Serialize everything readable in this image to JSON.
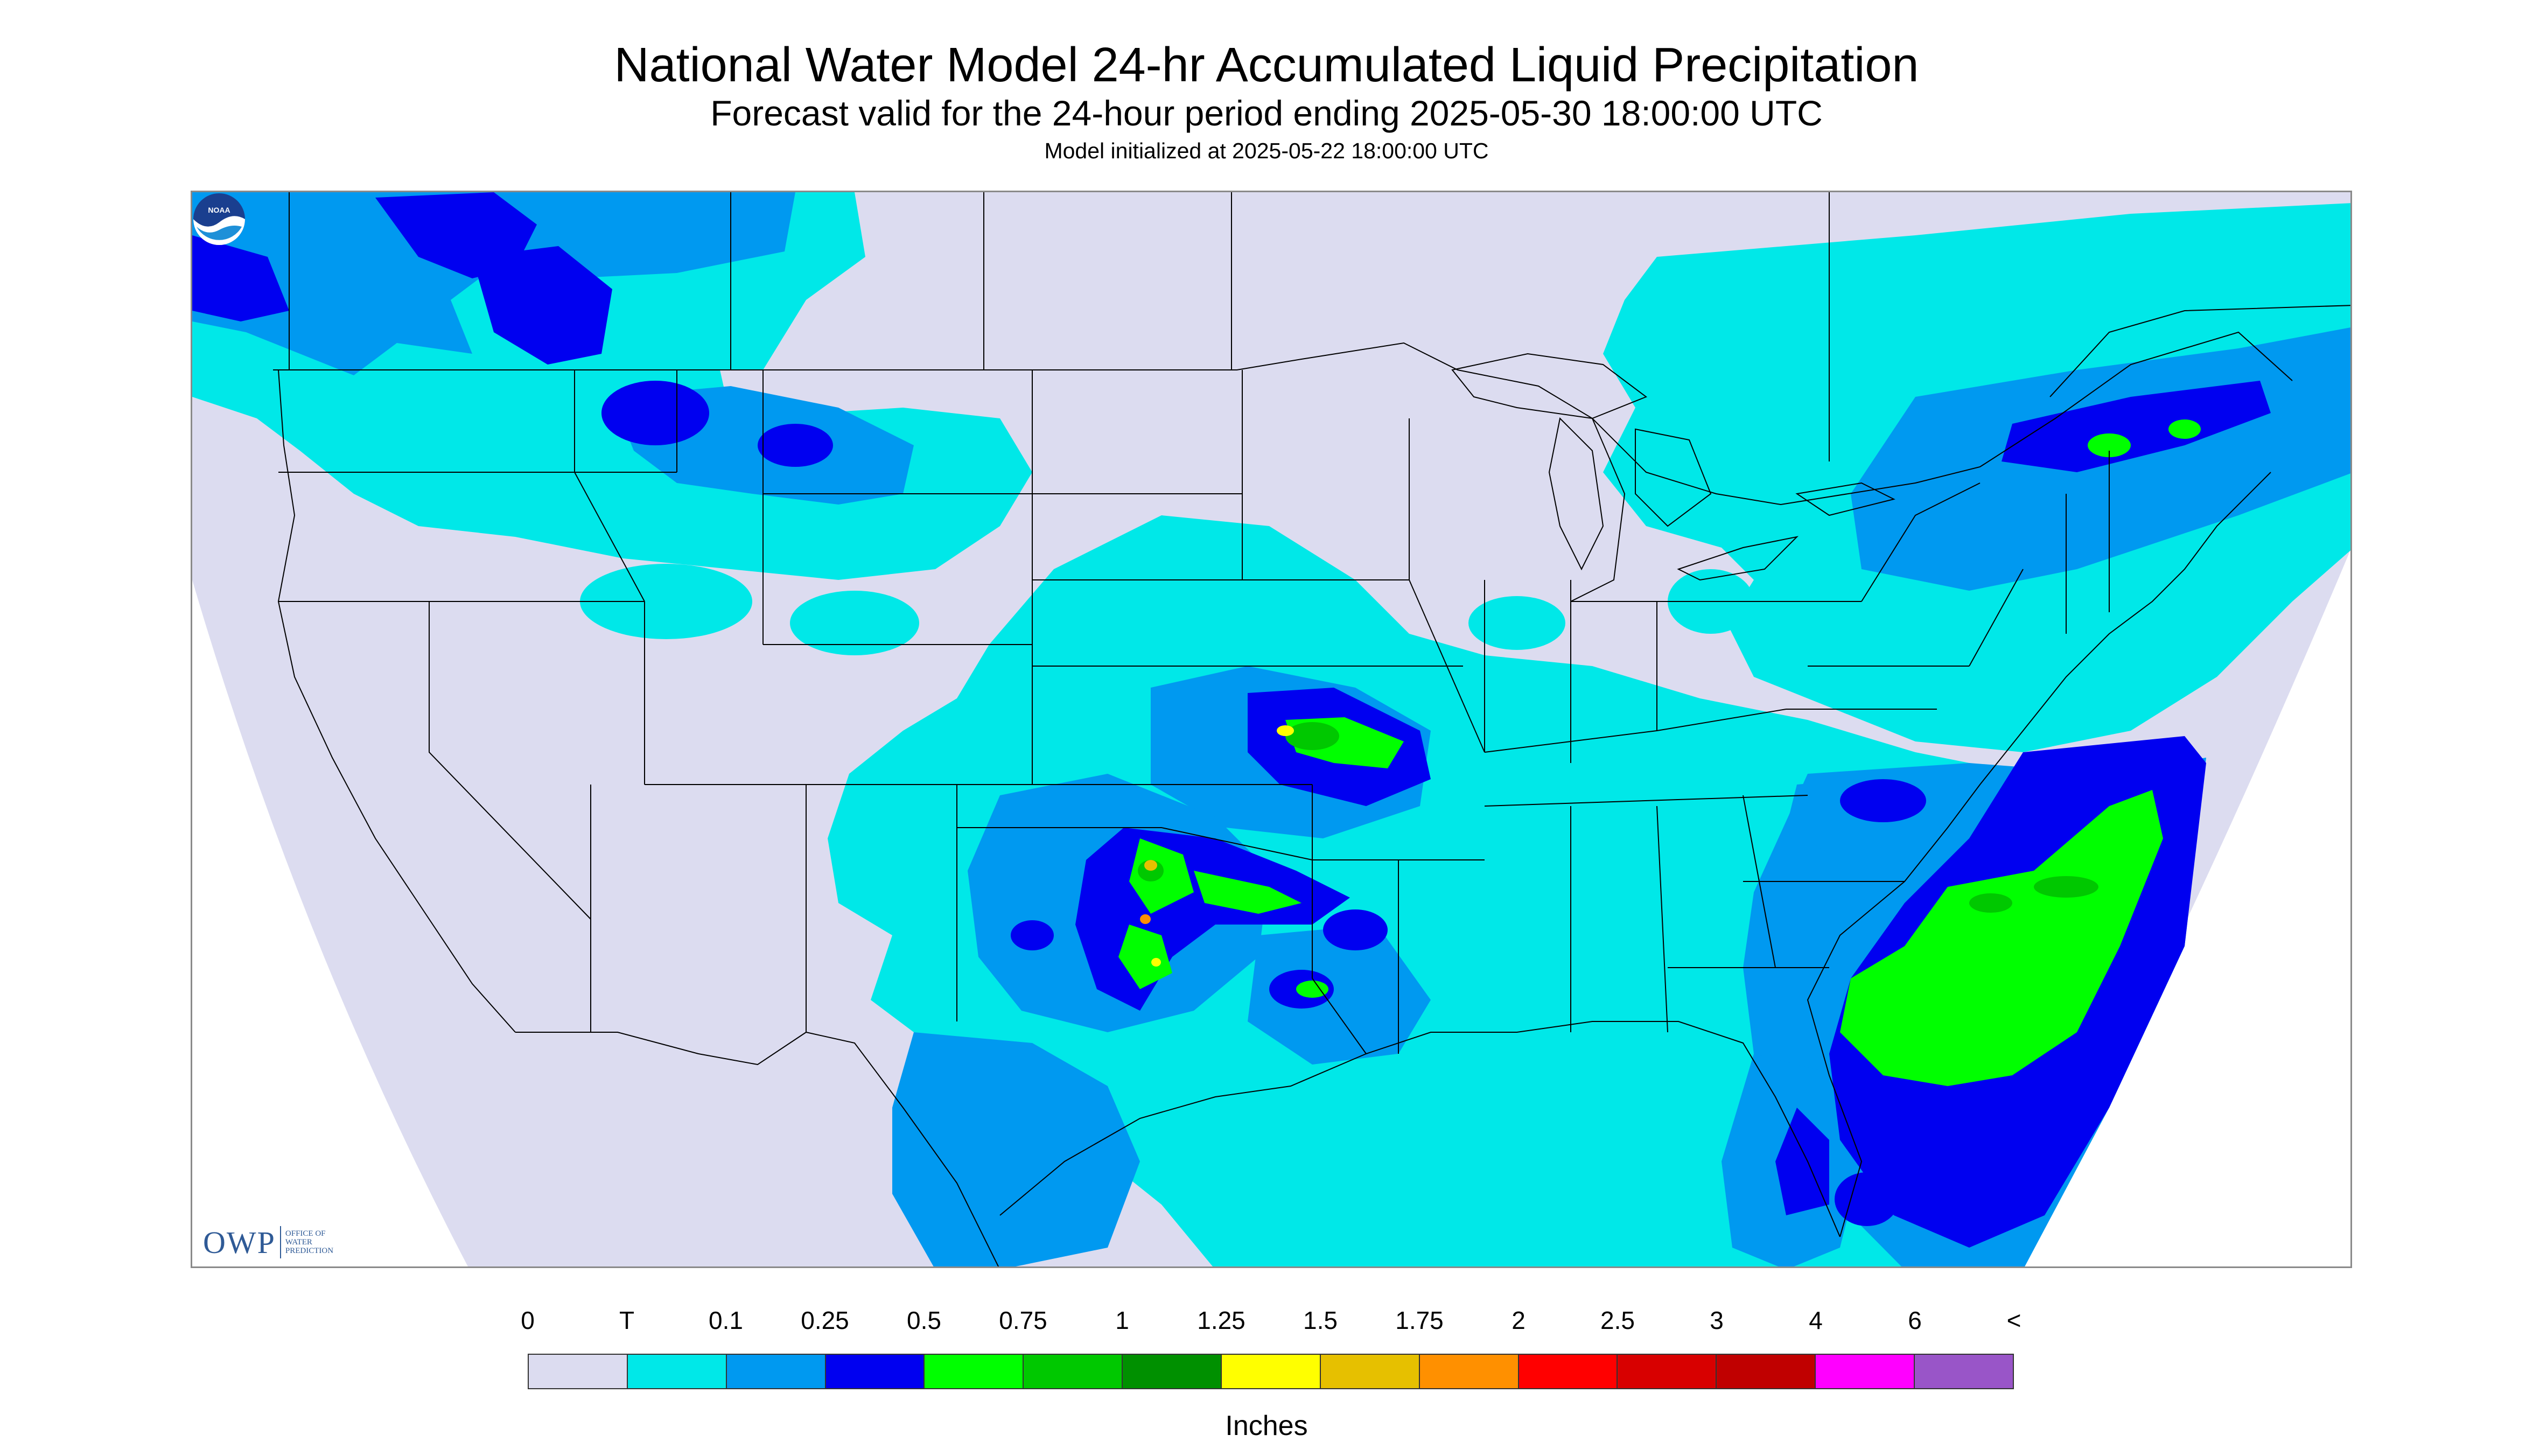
{
  "header": {
    "title": "National Water Model 24-hr Accumulated Liquid Precipitation",
    "subtitle": "Forecast valid for the 24-hour period ending 2025-05-30 18:00:00 UTC",
    "init": "Model initialized at 2025-05-22 18:00:00 UTC"
  },
  "logos": {
    "owp_mark": "OWP",
    "owp_line1": "Office of",
    "owp_line2": "Water",
    "owp_line3": "Prediction",
    "noaa_text": "NOAA"
  },
  "legend": {
    "units": "Inches",
    "labels": [
      "0",
      "T",
      "0.1",
      "0.25",
      "0.5",
      "0.75",
      "1",
      "1.25",
      "1.5",
      "1.75",
      "2",
      "2.5",
      "3",
      "4",
      "6",
      "<"
    ],
    "colors": [
      "#dcdcf0",
      "#00e8e8",
      "#0099f0",
      "#0000f0",
      "#00ff00",
      "#00c800",
      "#009000",
      "#ffff00",
      "#e6c000",
      "#ff9000",
      "#ff0000",
      "#d80000",
      "#c00000",
      "#ff00ff",
      "#9955c8"
    ]
  },
  "colors": {
    "background": "#dcdcf0",
    "trace": "#00e8e8",
    "light": "#0099f0",
    "half": "#0000f0",
    "threequarter": "#00ff00",
    "one": "#00c800",
    "onequarter": "#ffff00",
    "onehalf": "#e6c000",
    "onethreequarter": "#ff9000"
  }
}
